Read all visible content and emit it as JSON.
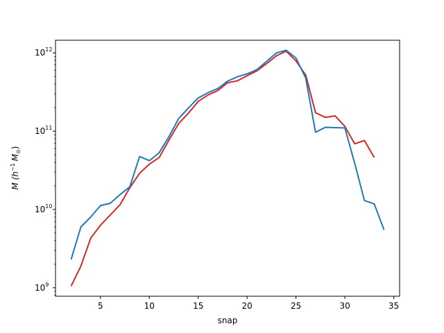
{
  "chart_data": {
    "type": "line",
    "title": "",
    "xlabel": "snap",
    "ylabel_main": "M (h",
    "ylabel_exp": "−1",
    "ylabel_unit_M": "M",
    "ylabel_unit_sub": "⊙",
    "ylabel_close": ")",
    "xscale": "linear",
    "yscale": "log",
    "xlim": [
      0.4,
      35.6
    ],
    "ylim": [
      780000000.0,
      1450000000000.0
    ],
    "xticks": [
      5,
      10,
      15,
      20,
      25,
      30,
      35
    ],
    "xtick_labels": [
      "5",
      "10",
      "15",
      "20",
      "25",
      "30",
      "35"
    ],
    "yticks": [
      1000000000.0,
      10000000000.0,
      100000000000.0,
      1000000000000.0
    ],
    "ytick_base": "10",
    "ytick_exps": [
      "9",
      "10",
      "11",
      "12"
    ],
    "grid": false,
    "series": [
      {
        "color": "#d62728",
        "x": [
          2,
          3,
          4,
          5,
          6,
          7,
          8,
          9,
          10,
          11,
          12,
          13,
          14,
          15,
          16,
          17,
          18,
          19,
          20,
          21,
          22,
          23,
          24,
          25,
          26,
          27,
          28,
          29,
          30,
          31,
          32,
          33
        ],
        "values": [
          1050000000.0,
          1900000000.0,
          4300000000.0,
          6300000000.0,
          8500000000.0,
          11500000000.0,
          19000000000.0,
          29000000000.0,
          38000000000.0,
          46000000000.0,
          77000000000.0,
          125000000000.0,
          170000000000.0,
          240000000000.0,
          290000000000.0,
          330000000000.0,
          415000000000.0,
          440000000000.0,
          510000000000.0,
          590000000000.0,
          730000000000.0,
          920000000000.0,
          1050000000000.0,
          790000000000.0,
          520000000000.0,
          172000000000.0,
          150000000000.0,
          157000000000.0,
          115000000000.0,
          69000000000.0,
          76000000000.0,
          46000000000.0
        ]
      },
      {
        "color": "#1f77b4",
        "x": [
          2,
          3,
          4,
          5,
          6,
          7,
          8,
          9,
          10,
          11,
          12,
          13,
          14,
          15,
          16,
          17,
          18,
          19,
          20,
          21,
          22,
          23,
          24,
          25,
          26,
          27,
          28,
          29,
          30,
          31,
          32,
          33,
          34
        ],
        "values": [
          2300000000.0,
          6000000000.0,
          8000000000.0,
          11200000000.0,
          12000000000.0,
          15500000000.0,
          19500000000.0,
          47500000000.0,
          42000000000.0,
          53000000000.0,
          85000000000.0,
          145000000000.0,
          198000000000.0,
          265000000000.0,
          310000000000.0,
          350000000000.0,
          435000000000.0,
          495000000000.0,
          540000000000.0,
          610000000000.0,
          780000000000.0,
          1000000000000.0,
          1080000000000.0,
          860000000000.0,
          475000000000.0,
          97000000000.0,
          112000000000.0,
          111000000000.0,
          110000000000.0,
          39000000000.0,
          13000000000.0,
          11800000000.0,
          5500000000.0
        ]
      }
    ]
  }
}
